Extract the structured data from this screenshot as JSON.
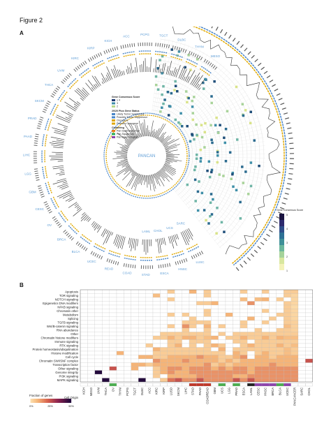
{
  "figure": {
    "title": "Figure 2",
    "panel_a_label": "A",
    "panel_b_label": "B"
  },
  "panel_a": {
    "center_label": "PANCAN",
    "cohort_labels": [
      "LUSC",
      "HNSC",
      "ESCA",
      "STAD",
      "COAD",
      "READ",
      "UCEC",
      "BLCA",
      "BRCA",
      "OV",
      "CESC",
      "GBM",
      "LGG",
      "LIHC",
      "PAAD",
      "PRAD",
      "SKCM",
      "THCA",
      "UVM",
      "KIRC",
      "KIRP",
      "KICH",
      "ACC",
      "PCPG",
      "TGCT",
      "DLBC",
      "THYM",
      "MESO",
      "SARC",
      "UCS",
      "CHOL",
      "LAML"
    ],
    "legend": {
      "consensus_title": "Gene Consensus Score",
      "consensus_items": [
        "≥ 4",
        "3",
        "2"
      ],
      "status_title": "20/20 Plus Gene Status",
      "status_items": [
        "Likely Tumor Suppressor",
        "Possibly Tumor Suppressor",
        "Oncogene",
        "Possibly Oncogene"
      ],
      "clustering_title": "Clustering",
      "clustering_items": [
        "Pan-Gastrointestinal",
        "Pan-Squamous",
        "Pan-Gynecological"
      ],
      "colorbar_title": "Gene Consensus Score",
      "colorbar_ticks": [
        "5",
        "4",
        "3",
        "2",
        "1"
      ]
    },
    "colors": {
      "cohort_label": "#5b9bd5",
      "oncogene": "#e0a800",
      "tsg": "#4a86c8"
    }
  },
  "panel_b": {
    "rows": [
      "Apoptosis",
      "TOR signaling",
      "NOTCH signaling",
      "Epigenetics DNA modifiers",
      "NFKB signaling",
      "Chromatin other",
      "Metabolism",
      "Splicing",
      "TGFB signaling",
      "Wnt/B-catenin signaling",
      "RNA abundance",
      "Other",
      "Chromatin histone modifiers",
      "Immune signaling",
      "RTK signaling",
      "Protein homeostasis/ubiquitination",
      "Histone modification",
      "Cell cycle",
      "Chromatin SWI/SNF complex",
      "Transcription factor",
      "Other signaling",
      "Genome integrity",
      "PI3K signaling",
      "MAPK signaling"
    ],
    "columns": [
      "KICH",
      "MESO",
      "UVM",
      "THCA",
      "OV",
      "THYM",
      "PCPG",
      "TGCT",
      "DLBC",
      "ACC",
      "KIRC",
      "KIRP",
      "LUSD",
      "SKCM",
      "LIHC",
      "STAD",
      "PAAD",
      "COADREAD",
      "GBM",
      "UCS",
      "LGG",
      "PRAD",
      "ESCA",
      "LAML",
      "CESC",
      "HNSC",
      "BRCA",
      "BLCA",
      "UCEC",
      "PANCANCER",
      "SARC",
      "CHOL"
    ],
    "cell_origin_label": "Cell Origin",
    "fraction_label": "Fraction of genes",
    "scale_ticks": [
      "0%",
      "25%",
      "50%"
    ],
    "cell_origin_colors": [
      "#ffffff",
      "#ffffff",
      "#ffffff",
      "#ffffff",
      "#4caf50",
      "#ffffff",
      "#ffffff",
      "#ffffff",
      "#ffffff",
      "#ffffff",
      "#ffffff",
      "#ffffff",
      "#ffffff",
      "#ffffff",
      "#ffffff",
      "#c0392b",
      "#c0392b",
      "#c0392b",
      "#ffffff",
      "#4caf50",
      "#ffffff",
      "#4caf50",
      "#ffffff",
      "#222222",
      "#8e44ad",
      "#8e44ad",
      "#8e44ad",
      "#4caf50",
      "#8e44ad",
      "#ffffff",
      "#ffffff",
      "#ffffff"
    ],
    "matrix": [
      [
        0,
        0,
        0,
        0,
        0,
        0,
        0,
        0,
        0,
        0,
        0,
        0,
        5,
        0,
        0,
        10,
        0,
        5,
        0,
        0,
        0,
        0,
        5,
        0,
        0,
        5,
        0,
        0,
        5,
        5,
        0,
        0
      ],
      [
        0,
        0,
        0,
        0,
        0,
        0,
        0,
        0,
        0,
        0,
        8,
        0,
        0,
        0,
        0,
        0,
        0,
        5,
        0,
        0,
        0,
        0,
        0,
        0,
        0,
        0,
        0,
        0,
        5,
        3,
        0,
        0
      ],
      [
        0,
        0,
        0,
        0,
        0,
        0,
        0,
        0,
        0,
        0,
        0,
        0,
        5,
        0,
        0,
        0,
        0,
        0,
        0,
        0,
        0,
        0,
        8,
        0,
        8,
        10,
        0,
        5,
        0,
        3,
        0,
        0
      ],
      [
        0,
        0,
        0,
        0,
        0,
        0,
        0,
        0,
        0,
        0,
        0,
        0,
        0,
        0,
        0,
        0,
        5,
        5,
        10,
        0,
        0,
        0,
        0,
        15,
        0,
        0,
        0,
        0,
        5,
        3,
        0,
        0
      ],
      [
        0,
        0,
        0,
        0,
        0,
        0,
        0,
        0,
        0,
        0,
        0,
        0,
        0,
        0,
        0,
        0,
        0,
        0,
        0,
        0,
        0,
        0,
        0,
        0,
        0,
        0,
        0,
        0,
        5,
        2,
        0,
        0
      ],
      [
        0,
        0,
        0,
        0,
        0,
        0,
        0,
        0,
        0,
        0,
        0,
        0,
        0,
        0,
        0,
        0,
        0,
        5,
        0,
        0,
        0,
        0,
        0,
        0,
        0,
        5,
        0,
        0,
        5,
        3,
        0,
        0
      ],
      [
        0,
        0,
        0,
        0,
        0,
        0,
        0,
        0,
        0,
        0,
        0,
        0,
        5,
        0,
        5,
        0,
        0,
        5,
        0,
        0,
        10,
        0,
        0,
        0,
        0,
        0,
        0,
        5,
        5,
        3,
        0,
        0
      ],
      [
        0,
        0,
        0,
        0,
        0,
        0,
        0,
        0,
        0,
        0,
        0,
        0,
        0,
        0,
        0,
        5,
        0,
        0,
        0,
        0,
        0,
        0,
        0,
        10,
        0,
        0,
        5,
        0,
        5,
        3,
        0,
        0
      ],
      [
        0,
        0,
        0,
        0,
        0,
        0,
        0,
        0,
        0,
        0,
        0,
        0,
        0,
        0,
        5,
        5,
        5,
        5,
        0,
        0,
        0,
        0,
        5,
        0,
        0,
        5,
        0,
        0,
        5,
        4,
        0,
        0
      ],
      [
        0,
        0,
        0,
        0,
        0,
        0,
        0,
        0,
        0,
        0,
        0,
        0,
        5,
        0,
        15,
        5,
        0,
        10,
        0,
        5,
        0,
        0,
        5,
        0,
        0,
        0,
        0,
        0,
        8,
        4,
        0,
        0
      ],
      [
        0,
        0,
        0,
        0,
        0,
        0,
        0,
        0,
        0,
        0,
        0,
        0,
        0,
        0,
        5,
        0,
        0,
        5,
        0,
        0,
        0,
        0,
        0,
        0,
        5,
        0,
        0,
        5,
        5,
        4,
        0,
        0
      ],
      [
        0,
        0,
        0,
        0,
        0,
        0,
        0,
        0,
        0,
        0,
        0,
        5,
        5,
        5,
        5,
        5,
        5,
        5,
        0,
        5,
        0,
        5,
        5,
        5,
        5,
        5,
        5,
        5,
        5,
        5,
        0,
        0
      ],
      [
        0,
        0,
        0,
        0,
        0,
        0,
        0,
        0,
        0,
        0,
        5,
        5,
        10,
        5,
        10,
        10,
        5,
        8,
        10,
        0,
        5,
        5,
        10,
        5,
        5,
        10,
        5,
        10,
        8,
        8,
        0,
        0
      ],
      [
        0,
        0,
        0,
        0,
        0,
        0,
        0,
        0,
        0,
        0,
        0,
        0,
        5,
        5,
        0,
        5,
        5,
        5,
        0,
        0,
        0,
        5,
        5,
        0,
        5,
        5,
        5,
        5,
        5,
        5,
        0,
        0
      ],
      [
        0,
        0,
        0,
        0,
        0,
        0,
        0,
        0,
        0,
        5,
        0,
        0,
        5,
        10,
        0,
        5,
        0,
        5,
        10,
        5,
        0,
        0,
        5,
        10,
        5,
        5,
        5,
        10,
        5,
        8,
        0,
        0
      ],
      [
        0,
        0,
        0,
        0,
        0,
        0,
        0,
        0,
        0,
        0,
        10,
        5,
        5,
        5,
        5,
        5,
        5,
        5,
        0,
        10,
        0,
        5,
        5,
        5,
        5,
        5,
        5,
        5,
        8,
        5,
        0,
        0
      ],
      [
        0,
        0,
        0,
        0,
        0,
        10,
        0,
        0,
        0,
        0,
        5,
        5,
        5,
        5,
        5,
        5,
        5,
        5,
        5,
        5,
        0,
        10,
        5,
        0,
        5,
        10,
        5,
        5,
        8,
        5,
        0,
        0
      ],
      [
        0,
        0,
        0,
        0,
        0,
        0,
        0,
        0,
        10,
        10,
        5,
        5,
        10,
        10,
        10,
        10,
        15,
        10,
        10,
        5,
        5,
        10,
        15,
        0,
        10,
        10,
        5,
        10,
        10,
        10,
        0,
        0
      ],
      [
        0,
        0,
        0,
        0,
        0,
        0,
        0,
        0,
        0,
        0,
        15,
        10,
        10,
        10,
        15,
        10,
        10,
        10,
        10,
        5,
        10,
        5,
        10,
        10,
        10,
        10,
        10,
        10,
        10,
        10,
        0,
        25
      ],
      [
        0,
        0,
        0,
        0,
        0,
        0,
        0,
        10,
        10,
        5,
        10,
        10,
        10,
        10,
        10,
        10,
        10,
        15,
        5,
        10,
        5,
        10,
        10,
        10,
        10,
        10,
        15,
        10,
        10,
        10,
        0,
        0
      ],
      [
        0,
        0,
        0,
        0,
        25,
        0,
        0,
        10,
        0,
        0,
        5,
        10,
        15,
        15,
        10,
        15,
        15,
        15,
        10,
        15,
        10,
        15,
        15,
        10,
        15,
        15,
        15,
        15,
        15,
        15,
        0,
        0
      ],
      [
        0,
        0,
        50,
        0,
        0,
        0,
        0,
        0,
        0,
        0,
        5,
        10,
        15,
        10,
        10,
        15,
        15,
        15,
        15,
        15,
        15,
        15,
        15,
        10,
        15,
        15,
        15,
        15,
        15,
        15,
        0,
        0
      ],
      [
        0,
        0,
        0,
        0,
        0,
        0,
        0,
        0,
        0,
        0,
        5,
        0,
        10,
        10,
        10,
        10,
        15,
        15,
        15,
        15,
        15,
        10,
        10,
        15,
        15,
        15,
        15,
        15,
        15,
        15,
        0,
        0
      ],
      [
        0,
        0,
        0,
        50,
        0,
        0,
        0,
        0,
        50,
        0,
        0,
        5,
        20,
        25,
        15,
        15,
        25,
        15,
        15,
        15,
        15,
        25,
        15,
        25,
        15,
        15,
        15,
        15,
        15,
        15,
        0,
        0
      ]
    ]
  }
}
